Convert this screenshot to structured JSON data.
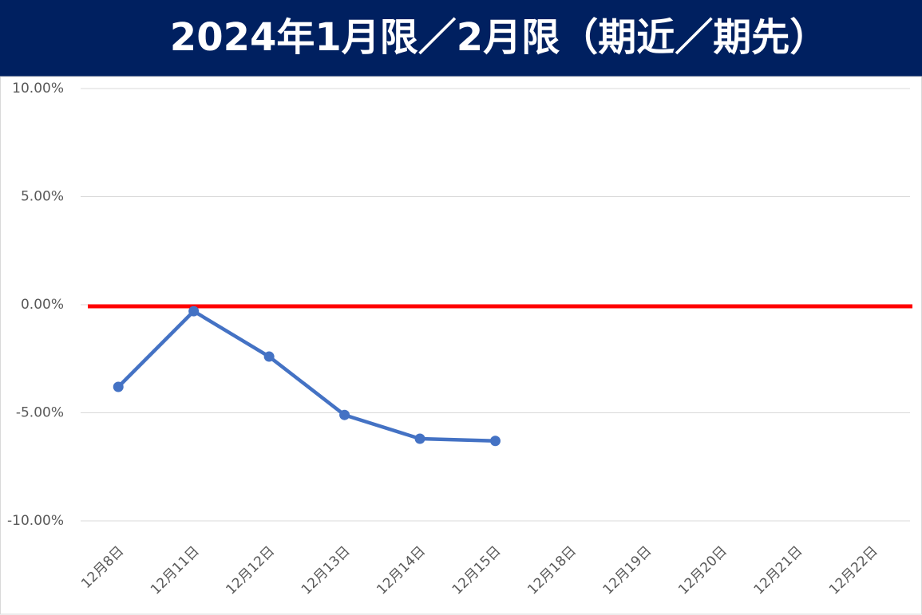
{
  "chart_data": {
    "type": "line",
    "title": "2024年1月限／2月限（期近／期先）",
    "categories": [
      "12月8日",
      "12月11日",
      "12月12日",
      "12月13日",
      "12月14日",
      "12月15日",
      "12月18日",
      "12月19日",
      "12月20日",
      "12月21日",
      "12月22日"
    ],
    "values": [
      -3.8,
      -0.3,
      -2.4,
      -5.1,
      -6.2,
      -6.3,
      null,
      null,
      null,
      null,
      null
    ],
    "color": "#4472c4",
    "ylim": [
      -10,
      10
    ],
    "yticks": [
      {
        "value": -10,
        "label": "-10.00%"
      },
      {
        "value": -5,
        "label": "-5.00%"
      },
      {
        "value": 0,
        "label": "0.00%"
      },
      {
        "value": 5,
        "label": "5.00%"
      },
      {
        "value": 10,
        "label": "10.00%"
      }
    ],
    "grid": true,
    "reference_line": {
      "value": 0,
      "color": "#ff0000"
    }
  }
}
